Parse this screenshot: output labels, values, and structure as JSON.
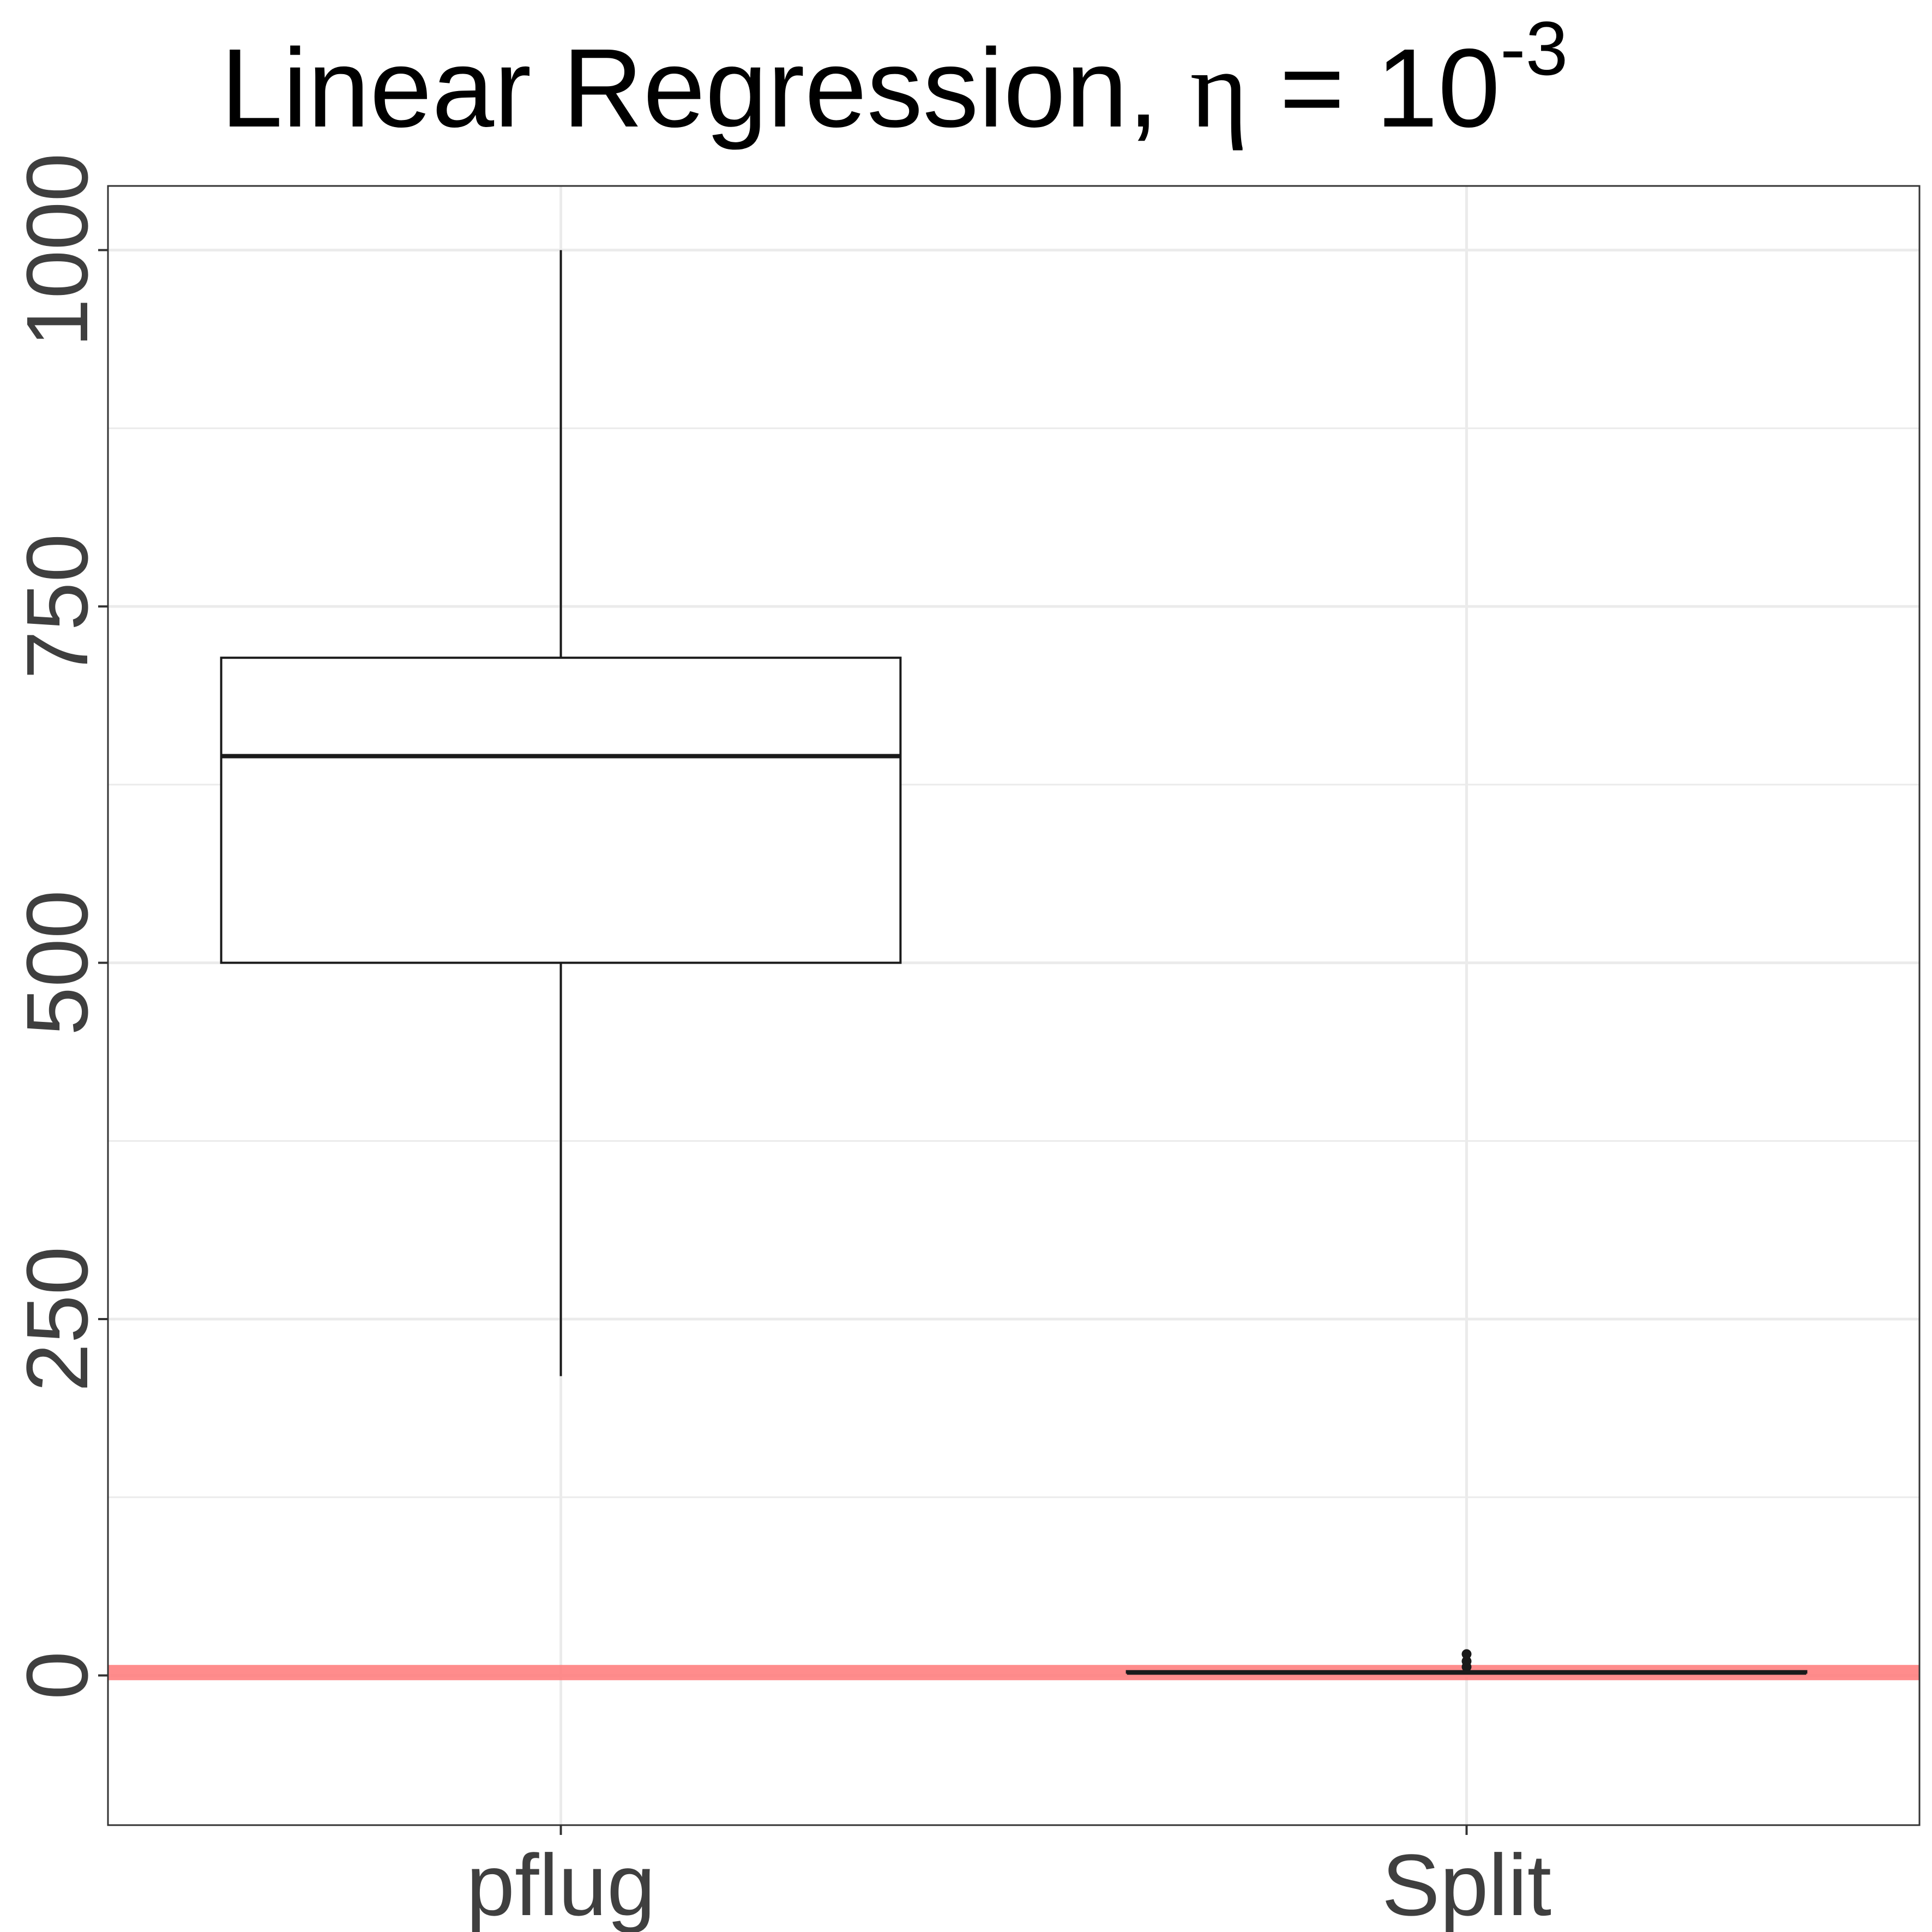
{
  "chart_data": {
    "type": "box",
    "title": {
      "text": "Linear Regression, ",
      "symbol": "η",
      "relation": " = 10",
      "exponent": "-3"
    },
    "xlabel": "",
    "ylabel": "",
    "categories": [
      "pflug",
      "Split"
    ],
    "ylim": [
      -105,
      1045
    ],
    "yticks": [
      0,
      250,
      500,
      750,
      1000
    ],
    "grid": true,
    "boxes": [
      {
        "category": "pflug",
        "whisker_low": 210,
        "q1": 500,
        "median": 645,
        "q3": 714,
        "whisker_high": 1000,
        "outliers": []
      },
      {
        "category": "Split",
        "whisker_low": 2,
        "q1": 2,
        "median": 2,
        "q3": 3,
        "whisker_high": 4,
        "outliers": [
          6,
          10,
          15
        ]
      }
    ],
    "reference_line": {
      "y": 2,
      "color": "#ff8080"
    },
    "colors": {
      "box_stroke": "#1a1a1a",
      "grid": "#ebebeb",
      "reference": "#ff8080"
    }
  }
}
